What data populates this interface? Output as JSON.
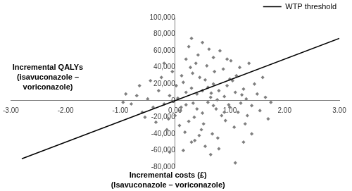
{
  "chart_data": {
    "type": "scatter",
    "xlabel": "Incremental costs (£) (Isavuconazole – voriconazole)",
    "ylabel": "Incremental QALYs (isavuconazole – voriconazole)",
    "xlim": [
      -3,
      3
    ],
    "xticks": [
      {
        "value": -3,
        "label": "-3.00"
      },
      {
        "value": -2,
        "label": "-2.00"
      },
      {
        "value": -1,
        "label": "-1.00"
      },
      {
        "value": 0,
        "label": "0.00"
      },
      {
        "value": 1,
        "label": "1.00"
      },
      {
        "value": 2,
        "label": "2.00"
      },
      {
        "value": 3,
        "label": "3.00"
      }
    ],
    "ylim": [
      -80000,
      100000
    ],
    "yticks": [
      {
        "value": -80000,
        "label": "-80,000"
      },
      {
        "value": -60000,
        "label": "-60,000"
      },
      {
        "value": -40000,
        "label": "-40,000"
      },
      {
        "value": -20000,
        "label": "-20,000"
      },
      0,
      {
        "value": 20000,
        "label": "20,000"
      },
      {
        "value": 40000,
        "label": "40,000"
      },
      {
        "value": 60000,
        "label": "60,000"
      },
      {
        "value": 80000,
        "label": "80,000"
      },
      {
        "value": 100000,
        "label": "100,000"
      }
    ],
    "grid": false,
    "legend": "top-right",
    "series": [
      {
        "type": "scatter",
        "color": "#7f7f7f",
        "marker": "diamond",
        "x": [
          0.05,
          0.2,
          0.4,
          0.6,
          0.8,
          1.0,
          0.3,
          0.5,
          0.7,
          0.9,
          1.1,
          1.2,
          0.1,
          -0.1,
          -0.2,
          0.15,
          0.35,
          0.55,
          0.75,
          0.95,
          1.15,
          1.3,
          -0.3,
          -0.4,
          0.25,
          0.45,
          0.65,
          0.85,
          1.05,
          1.25,
          1.4,
          1.5,
          -0.5,
          -0.6,
          0.0,
          0.02,
          0.12,
          0.32,
          0.52,
          0.72,
          0.92,
          1.12,
          1.32,
          1.45,
          1.55,
          1.65,
          1.75,
          -0.7,
          -0.8,
          -0.9,
          -0.65,
          -0.55,
          -0.45,
          -0.35,
          0.28,
          0.48,
          0.68,
          0.88,
          1.08,
          1.28,
          0.18,
          0.38,
          0.58,
          0.78,
          0.98,
          1.18,
          0.08,
          -0.05,
          -0.15,
          -0.25,
          0.42,
          0.62,
          0.25,
          0.3,
          0.82,
          0.55,
          0.3,
          0.8,
          1.1,
          -0.1,
          0.15,
          1.35,
          1.6,
          1.7,
          -0.95,
          0.5,
          0.6,
          0.4,
          0.7,
          0.2,
          0.9,
          1.0,
          0.33,
          0.66,
          0.77,
          0.11,
          1.22,
          -0.12,
          0.44,
          0.95,
          1.02,
          0.7,
          0.36,
          0.5,
          0.2,
          -0.2,
          1.4,
          1.25,
          0.65
        ],
        "values": [
          3000,
          -5000,
          8000,
          -2000,
          12000,
          -8000,
          15000,
          -15000,
          20000,
          5000,
          10000,
          -3000,
          -12000,
          6000,
          -4000,
          22000,
          -20000,
          25000,
          -10000,
          18000,
          -14000,
          2000,
          12000,
          -8000,
          -25000,
          28000,
          4000,
          -18000,
          24000,
          14000,
          -6000,
          8000,
          2000,
          -14000,
          -18000,
          18000,
          30000,
          33000,
          -28000,
          35000,
          -24000,
          30000,
          -18000,
          20000,
          -12000,
          4000,
          -2000,
          6000,
          -4000,
          8000,
          18000,
          -20000,
          24000,
          -26000,
          40000,
          -35000,
          -40000,
          38000,
          -32000,
          -28000,
          -38000,
          45000,
          42000,
          -45000,
          -5000,
          40000,
          -30000,
          35000,
          -35000,
          28000,
          55000,
          62000,
          65000,
          75000,
          60000,
          -55000,
          -50000,
          -58000,
          -75000,
          -62000,
          -60000,
          45000,
          28000,
          -22000,
          -2000,
          12000,
          16000,
          -10000,
          -6000,
          10000,
          -14000,
          26000,
          -3000,
          9000,
          1000,
          -8000,
          7000,
          -22000,
          -42000,
          50000,
          48000,
          52000,
          -48000,
          70000,
          50000,
          45000,
          -40000,
          -50000,
          -65000
        ]
      },
      {
        "name": "WTP threshold",
        "type": "line",
        "color": "#000000",
        "line_style": "solid",
        "x": [
          -2.8,
          3.0
        ],
        "values": [
          -70000,
          75000
        ]
      }
    ]
  }
}
